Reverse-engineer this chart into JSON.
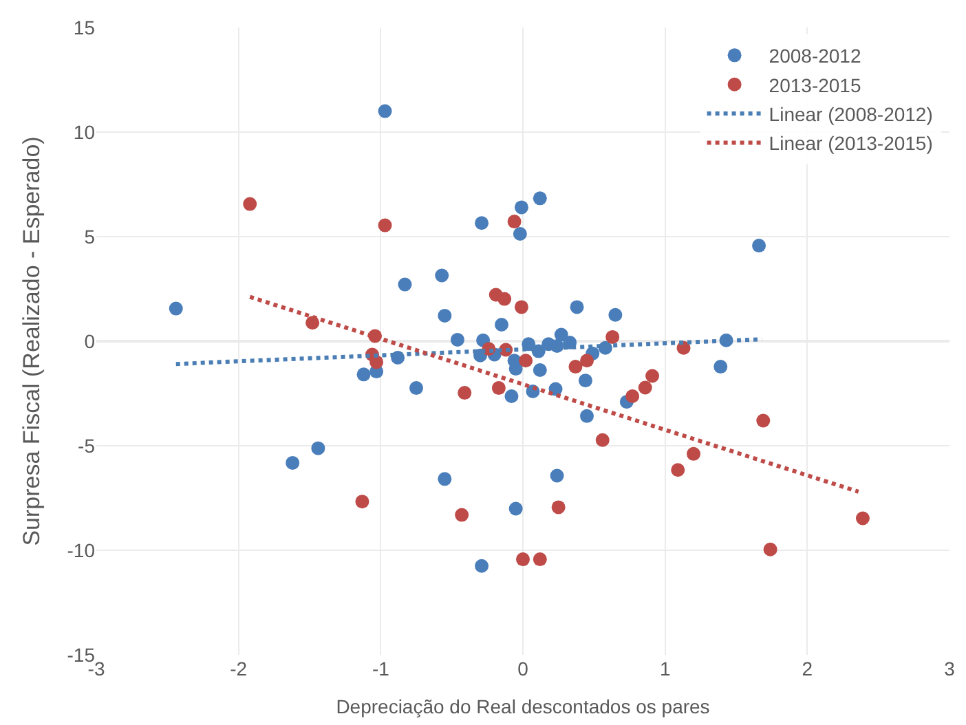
{
  "chart_data": {
    "type": "scatter",
    "xlabel": "Depreciação do Real descontados os pares",
    "ylabel": "Surpresa Fiscal (Realizado - Esperado)",
    "xlim": [
      -3,
      3
    ],
    "ylim": [
      -15,
      15
    ],
    "xticks": [
      -3,
      -2,
      -1,
      0,
      1,
      2,
      3
    ],
    "yticks": [
      -15,
      -10,
      -5,
      0,
      5,
      10,
      15
    ],
    "grid": true,
    "legend": "top right",
    "marker": "circle",
    "ref_lines": [
      {
        "axis": "y",
        "value": 0,
        "color": "#a6a6a6"
      }
    ],
    "series": [
      {
        "name": "2008-2012",
        "color": "#4a7ebb",
        "x": [
          -2.44,
          -0.97,
          -0.29,
          -0.01,
          -0.02,
          0.12,
          1.66,
          -0.57,
          -0.83,
          -0.55,
          -0.15,
          -0.46,
          -0.28,
          0.65,
          0.38,
          1.43,
          1.39,
          0.04,
          0.11,
          0.18,
          0.24,
          0.27,
          0.33,
          -0.06,
          -0.05,
          0.12,
          -0.08,
          0.07,
          0.23,
          0.44,
          0.49,
          0.58,
          0.45,
          0.73,
          0.24,
          -0.05,
          -0.3,
          -0.2,
          -0.88,
          -1.12,
          -1.03,
          -0.75,
          -1.44,
          -1.62,
          -0.55,
          -0.29
        ],
        "values": [
          1.56,
          11.0,
          5.65,
          6.4,
          5.13,
          6.83,
          4.57,
          3.14,
          2.71,
          1.22,
          0.79,
          0.07,
          0.04,
          1.26,
          1.63,
          0.04,
          -1.22,
          -0.14,
          -0.48,
          -0.14,
          -0.23,
          0.31,
          -0.07,
          -0.93,
          -1.32,
          -1.38,
          -2.63,
          -2.4,
          -2.29,
          -1.88,
          -0.59,
          -0.32,
          -3.58,
          -2.9,
          -6.43,
          -8.01,
          -0.68,
          -0.64,
          -0.79,
          -1.59,
          -1.45,
          -2.24,
          -5.12,
          -5.82,
          -6.59,
          -10.75
        ]
      },
      {
        "name": "2013-2015",
        "color": "#be4b48",
        "x": [
          -1.92,
          -0.97,
          -0.06,
          -0.19,
          -0.13,
          -0.01,
          -1.48,
          -1.04,
          0.63,
          1.13,
          -1.06,
          -1.03,
          -0.24,
          -0.12,
          0.02,
          -0.17,
          -0.41,
          -1.13,
          -0.43,
          0.0,
          0.12,
          0.25,
          0.37,
          0.45,
          0.56,
          0.77,
          0.86,
          0.91,
          1.69,
          1.2,
          1.09,
          2.39,
          1.74
        ],
        "values": [
          6.56,
          5.54,
          5.72,
          2.22,
          2.02,
          1.63,
          0.88,
          0.25,
          0.2,
          -0.32,
          -0.64,
          -1.0,
          -0.37,
          -0.41,
          -0.93,
          -2.24,
          -2.47,
          -7.67,
          -8.31,
          -10.43,
          -10.43,
          -7.94,
          -1.22,
          -0.93,
          -4.73,
          -2.63,
          -2.22,
          -1.66,
          -3.8,
          -5.39,
          -6.16,
          -8.47,
          -9.96
        ]
      },
      {
        "name": "Linear (2008-2012)",
        "type": "line",
        "line_style": "dotted",
        "marker": "none",
        "color": "#4a7eb5",
        "x": [
          -2.44,
          1.68
        ],
        "values": [
          -1.09,
          0.09
        ]
      },
      {
        "name": "Linear (2013-2015)",
        "type": "line",
        "line_style": "dotted",
        "marker": "none",
        "color": "#be4b48",
        "x": [
          -1.92,
          2.36
        ],
        "values": [
          2.12,
          -7.2
        ]
      }
    ]
  }
}
